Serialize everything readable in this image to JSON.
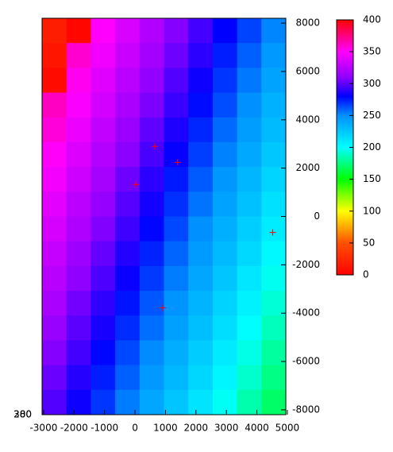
{
  "chart_data": {
    "type": "heatmap",
    "xlim": [
      -3050,
      4950
    ],
    "ylim": [
      -8200,
      8200
    ],
    "xticks": [
      -3000,
      -2000,
      -1000,
      0,
      1000,
      2000,
      3000,
      4000,
      5000
    ],
    "yticks": [
      -8000,
      -6000,
      -4000,
      -2000,
      0,
      2000,
      4000,
      6000,
      8000
    ],
    "z": [
      [
        18,
        4,
        350,
        336,
        322,
        308,
        294,
        280,
        266,
        252
      ],
      [
        13,
        359,
        345,
        331,
        317,
        303,
        289,
        274,
        260,
        246
      ],
      [
        7,
        353,
        339,
        325,
        311,
        297,
        283,
        269,
        255,
        241
      ],
      [
        362,
        348,
        334,
        320,
        306,
        292,
        278,
        264,
        250,
        235
      ],
      [
        357,
        343,
        328,
        314,
        300,
        286,
        272,
        258,
        244,
        230
      ],
      [
        351,
        337,
        323,
        309,
        295,
        281,
        267,
        253,
        239,
        225
      ],
      [
        346,
        332,
        318,
        303,
        289,
        275,
        261,
        247,
        233,
        219
      ],
      [
        340,
        326,
        312,
        298,
        284,
        270,
        256,
        242,
        228,
        214
      ],
      [
        335,
        321,
        307,
        293,
        279,
        265,
        250,
        236,
        222,
        208
      ],
      [
        329,
        315,
        301,
        287,
        273,
        259,
        245,
        231,
        217,
        203
      ],
      [
        324,
        310,
        296,
        282,
        268,
        254,
        240,
        226,
        211,
        197
      ],
      [
        319,
        304,
        290,
        276,
        262,
        248,
        234,
        220,
        206,
        192
      ],
      [
        313,
        299,
        285,
        271,
        257,
        243,
        229,
        215,
        201,
        187
      ],
      [
        308,
        294,
        279,
        265,
        251,
        237,
        223,
        209,
        195,
        181
      ],
      [
        302,
        288,
        274,
        260,
        246,
        232,
        218,
        204,
        190,
        176
      ],
      [
        297,
        283,
        269,
        254,
        240,
        226,
        212,
        198,
        184,
        170
      ]
    ],
    "colorbar": {
      "lim": [
        0,
        400
      ],
      "ticks": [
        0,
        50,
        100,
        150,
        200,
        250,
        300,
        350,
        400
      ],
      "colormap": [
        [
          0,
          "#ff0000"
        ],
        [
          50,
          "#ff5000"
        ],
        [
          100,
          "#ffff00"
        ],
        [
          150,
          "#00ff00"
        ],
        [
          200,
          "#00ffff"
        ],
        [
          250,
          "#0090ff"
        ],
        [
          280,
          "#0000ff"
        ],
        [
          310,
          "#9000ff"
        ],
        [
          350,
          "#ff00ff"
        ],
        [
          400,
          "#ff0000"
        ]
      ]
    },
    "points": {
      "color": "#ff0000",
      "x": [
        650,
        1400,
        25,
        4520,
        910
      ],
      "y": [
        2900,
        2240,
        1320,
        -660,
        -3780
      ]
    },
    "labels": [
      "300",
      "280"
    ]
  }
}
